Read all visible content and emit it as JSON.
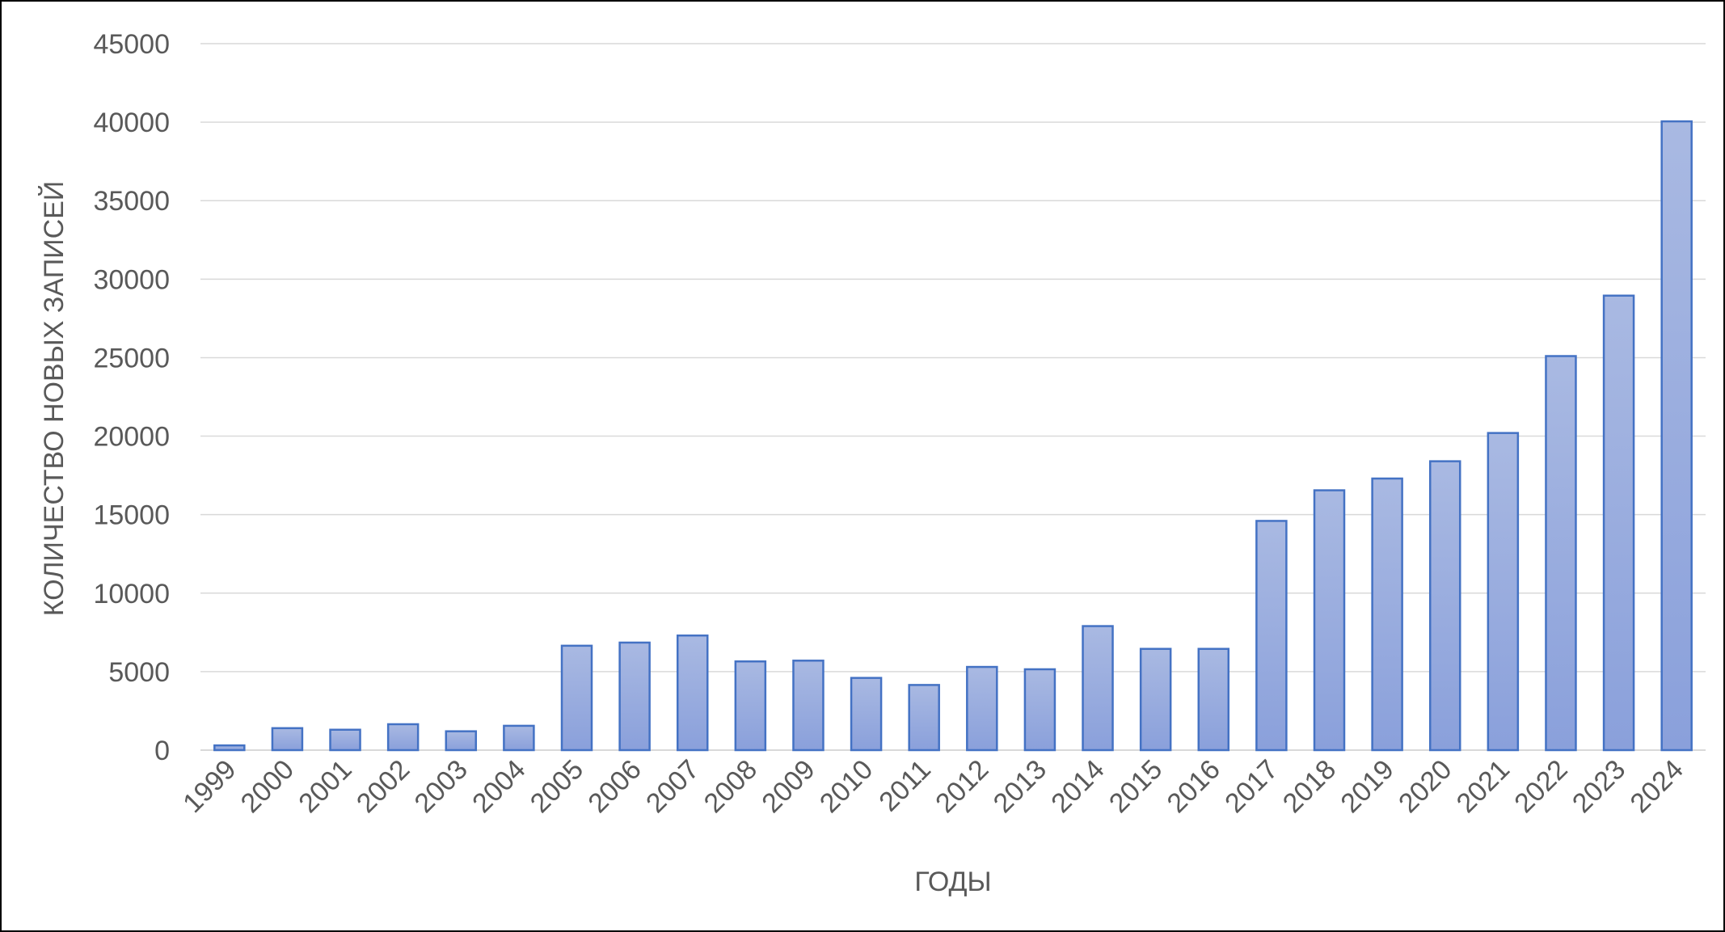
{
  "chart_data": {
    "type": "bar",
    "title": "",
    "xlabel": "ГОДЫ",
    "ylabel": "КОЛИЧЕСТВО НОВЫХ ЗАПИСЕЙ",
    "ylim": [
      0,
      45000
    ],
    "yticks": [
      0,
      5000,
      10000,
      15000,
      20000,
      25000,
      30000,
      35000,
      40000,
      45000
    ],
    "grid": true,
    "legend": "none",
    "categories": [
      "1999",
      "2000",
      "2001",
      "2002",
      "2003",
      "2004",
      "2005",
      "2006",
      "2007",
      "2008",
      "2009",
      "2010",
      "2011",
      "2012",
      "2013",
      "2014",
      "2015",
      "2016",
      "2017",
      "2018",
      "2019",
      "2020",
      "2021",
      "2022",
      "2023",
      "2024"
    ],
    "values": [
      300,
      1400,
      1300,
      1650,
      1200,
      1550,
      6650,
      6850,
      7300,
      5650,
      5700,
      4600,
      4150,
      5300,
      5150,
      7900,
      6450,
      6450,
      14600,
      16550,
      17300,
      18400,
      20200,
      25100,
      28950,
      40050
    ],
    "colors": {
      "bar_top": "#a9b9e2",
      "bar_bottom": "#8aa0db",
      "bar_stroke": "#4472c4",
      "grid": "#d9d9d9",
      "text": "#595959"
    }
  }
}
